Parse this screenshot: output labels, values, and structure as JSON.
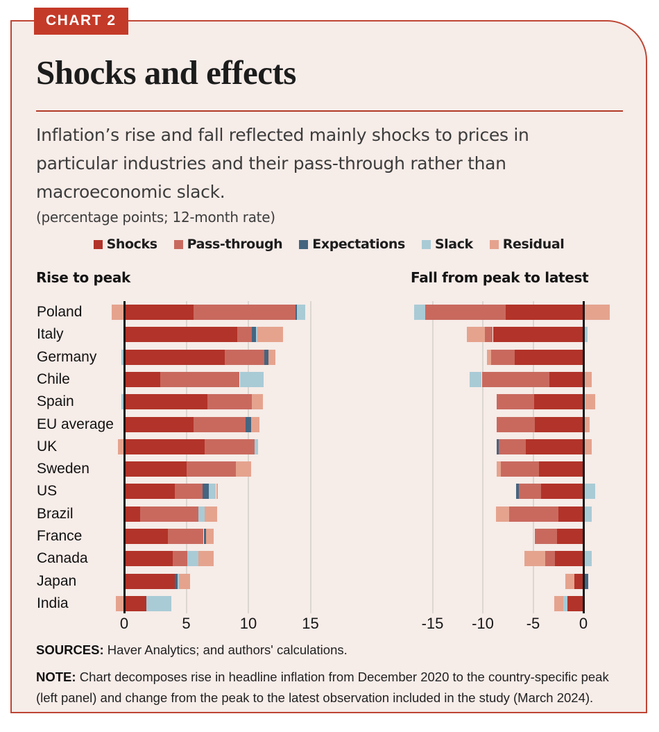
{
  "badge": "CHART 2",
  "title": "Shocks and effects",
  "subtitle": "Inflation’s rise and fall reflected mainly shocks to prices in\nparticular industries and their pass-through rather than\nmacroeconomic slack.",
  "unit_label": "(percentage points; 12-month rate)",
  "legend": {
    "items": [
      {
        "key": "shocks",
        "label": "Shocks"
      },
      {
        "key": "pass_through",
        "label": "Pass-through"
      },
      {
        "key": "expectations",
        "label": "Expectations"
      },
      {
        "key": "slack",
        "label": "Slack"
      },
      {
        "key": "residual",
        "label": "Residual"
      }
    ]
  },
  "colors": {
    "shocks": "#b23329",
    "pass_through": "#c9695e",
    "expectations": "#456580",
    "slack": "#a9cbd6",
    "residual": "#e5a38e",
    "card_background": "#f6ece8",
    "card_border": "#bf4534",
    "badge_background": "#c43a28",
    "gridline": "#dcd6d1",
    "zero_axis": "#141414"
  },
  "chart_data": {
    "type": "bar",
    "orientation": "horizontal-stacked",
    "title": "Shocks and effects",
    "categories": [
      "Poland",
      "Italy",
      "Germany",
      "Chile",
      "Spain",
      "EU average",
      "UK",
      "Sweden",
      "US",
      "Brazil",
      "France",
      "Canada",
      "Japan",
      "India"
    ],
    "series_keys": [
      "shocks",
      "pass_through",
      "expectations",
      "slack",
      "residual"
    ],
    "legend_position": "top-center",
    "panels": [
      {
        "id": "rise",
        "title": "Rise to peak",
        "xlim": [
          -1.5,
          17.3
        ],
        "ticks": [
          {
            "value": 0,
            "label": "0"
          },
          {
            "value": 5,
            "label": "5"
          },
          {
            "value": 10,
            "label": "10"
          },
          {
            "value": 15,
            "label": "15"
          }
        ],
        "values": [
          {
            "country": "Poland",
            "shocks": 5.6,
            "pass_through": 8.2,
            "expectations": 0.1,
            "slack": 0.7,
            "residual": -1.0
          },
          {
            "country": "Italy",
            "shocks": 9.1,
            "pass_through": 1.2,
            "expectations": 0.3,
            "slack": 0.1,
            "residual": 2.1
          },
          {
            "country": "Germany",
            "shocks": 8.1,
            "pass_through": 3.2,
            "expectations": 0.3,
            "slack": -0.2,
            "residual": 0.6
          },
          {
            "country": "Chile",
            "shocks": 2.9,
            "pass_through": 6.4,
            "expectations": 0,
            "slack": 1.9,
            "residual": 0
          },
          {
            "country": "Spain",
            "shocks": 6.7,
            "pass_through": 3.6,
            "expectations": 0,
            "slack": -0.2,
            "residual": 0.9
          },
          {
            "country": "EU average",
            "shocks": 5.6,
            "pass_through": 4.2,
            "expectations": 0.4,
            "slack": 0,
            "residual": 0.7
          },
          {
            "country": "UK",
            "shocks": 6.5,
            "pass_through": 4.0,
            "expectations": 0,
            "slack": 0.3,
            "residual": -0.5
          },
          {
            "country": "Sweden",
            "shocks": 5.0,
            "pass_through": 4.0,
            "expectations": 0,
            "slack": 0,
            "residual": 1.2
          },
          {
            "country": "US",
            "shocks": 4.1,
            "pass_through": 2.2,
            "expectations": 0.5,
            "slack": 0.6,
            "residual": 0.1
          },
          {
            "country": "Brazil",
            "shocks": 1.3,
            "pass_through": 4.7,
            "expectations": 0,
            "slack": 0.5,
            "residual": 1.0
          },
          {
            "country": "France",
            "shocks": 3.5,
            "pass_through": 2.9,
            "expectations": 0.2,
            "slack": 0,
            "residual": 0.6
          },
          {
            "country": "Canada",
            "shocks": 3.9,
            "pass_through": 1.2,
            "expectations": 0,
            "slack": 0.9,
            "residual": 1.2
          },
          {
            "country": "Japan",
            "shocks": 4.1,
            "pass_through": 0,
            "expectations": 0.2,
            "slack": 0.1,
            "residual": 0.9
          },
          {
            "country": "India",
            "shocks": 1.8,
            "pass_through": 0,
            "expectations": 0,
            "slack": 2.0,
            "residual": -0.7
          }
        ]
      },
      {
        "id": "fall",
        "title": "Fall from peak to latest",
        "xlim": [
          -18,
          3
        ],
        "ticks": [
          {
            "value": -15,
            "label": "-15"
          },
          {
            "value": -10,
            "label": "-10"
          },
          {
            "value": -5,
            "label": "-5"
          },
          {
            "value": 0,
            "label": "0"
          }
        ],
        "values": [
          {
            "country": "Poland",
            "shocks": -7.7,
            "pass_through": -8.0,
            "expectations": 0,
            "slack": -1.1,
            "residual": 2.6
          },
          {
            "country": "Italy",
            "shocks": -9.0,
            "pass_through": -0.8,
            "expectations": 0,
            "slack": 0.4,
            "residual": -1.8
          },
          {
            "country": "Germany",
            "shocks": -6.8,
            "pass_through": -2.4,
            "expectations": 0,
            "slack": 0,
            "residual": -0.4
          },
          {
            "country": "Chile",
            "shocks": -3.4,
            "pass_through": -6.7,
            "expectations": 0,
            "slack": -1.2,
            "residual": 0.8
          },
          {
            "country": "Spain",
            "shocks": -4.9,
            "pass_through": -3.7,
            "expectations": 0,
            "slack": 0.2,
            "residual": 1.0
          },
          {
            "country": "EU average",
            "shocks": -4.8,
            "pass_through": -3.8,
            "expectations": 0,
            "slack": 0,
            "residual": 0.6
          },
          {
            "country": "UK",
            "shocks": -5.7,
            "pass_through": -2.7,
            "expectations": -0.2,
            "slack": 0,
            "residual": 0.8
          },
          {
            "country": "Sweden",
            "shocks": -4.4,
            "pass_through": -3.8,
            "expectations": 0,
            "slack": 0,
            "residual": -0.4
          },
          {
            "country": "US",
            "shocks": -4.2,
            "pass_through": -2.2,
            "expectations": -0.3,
            "slack": 1.2,
            "residual": 0
          },
          {
            "country": "Brazil",
            "shocks": -2.5,
            "pass_through": -4.9,
            "expectations": 0,
            "slack": 0.8,
            "residual": -1.3
          },
          {
            "country": "France",
            "shocks": -2.6,
            "pass_through": -2.2,
            "expectations": 0,
            "slack": 0,
            "residual": 0
          },
          {
            "country": "Canada",
            "shocks": -2.8,
            "pass_through": -1.0,
            "expectations": 0,
            "slack": 0.8,
            "residual": -2.1
          },
          {
            "country": "Japan",
            "shocks": -0.9,
            "pass_through": 0,
            "expectations": 0.5,
            "slack": 0,
            "residual": -0.9
          },
          {
            "country": "India",
            "shocks": -1.6,
            "pass_through": 0,
            "expectations": 0,
            "slack": -0.4,
            "residual": -0.9
          }
        ]
      }
    ]
  },
  "footer": {
    "sources_label": "SOURCES:",
    "sources_text": "Haver Analytics; and authors' calculations.",
    "note_label": "NOTE:",
    "note_text": "Chart decomposes rise in headline inflation from December 2020 to the country-specific peak\n(left panel) and change from the peak to the latest observation included in the study (March 2024)."
  }
}
